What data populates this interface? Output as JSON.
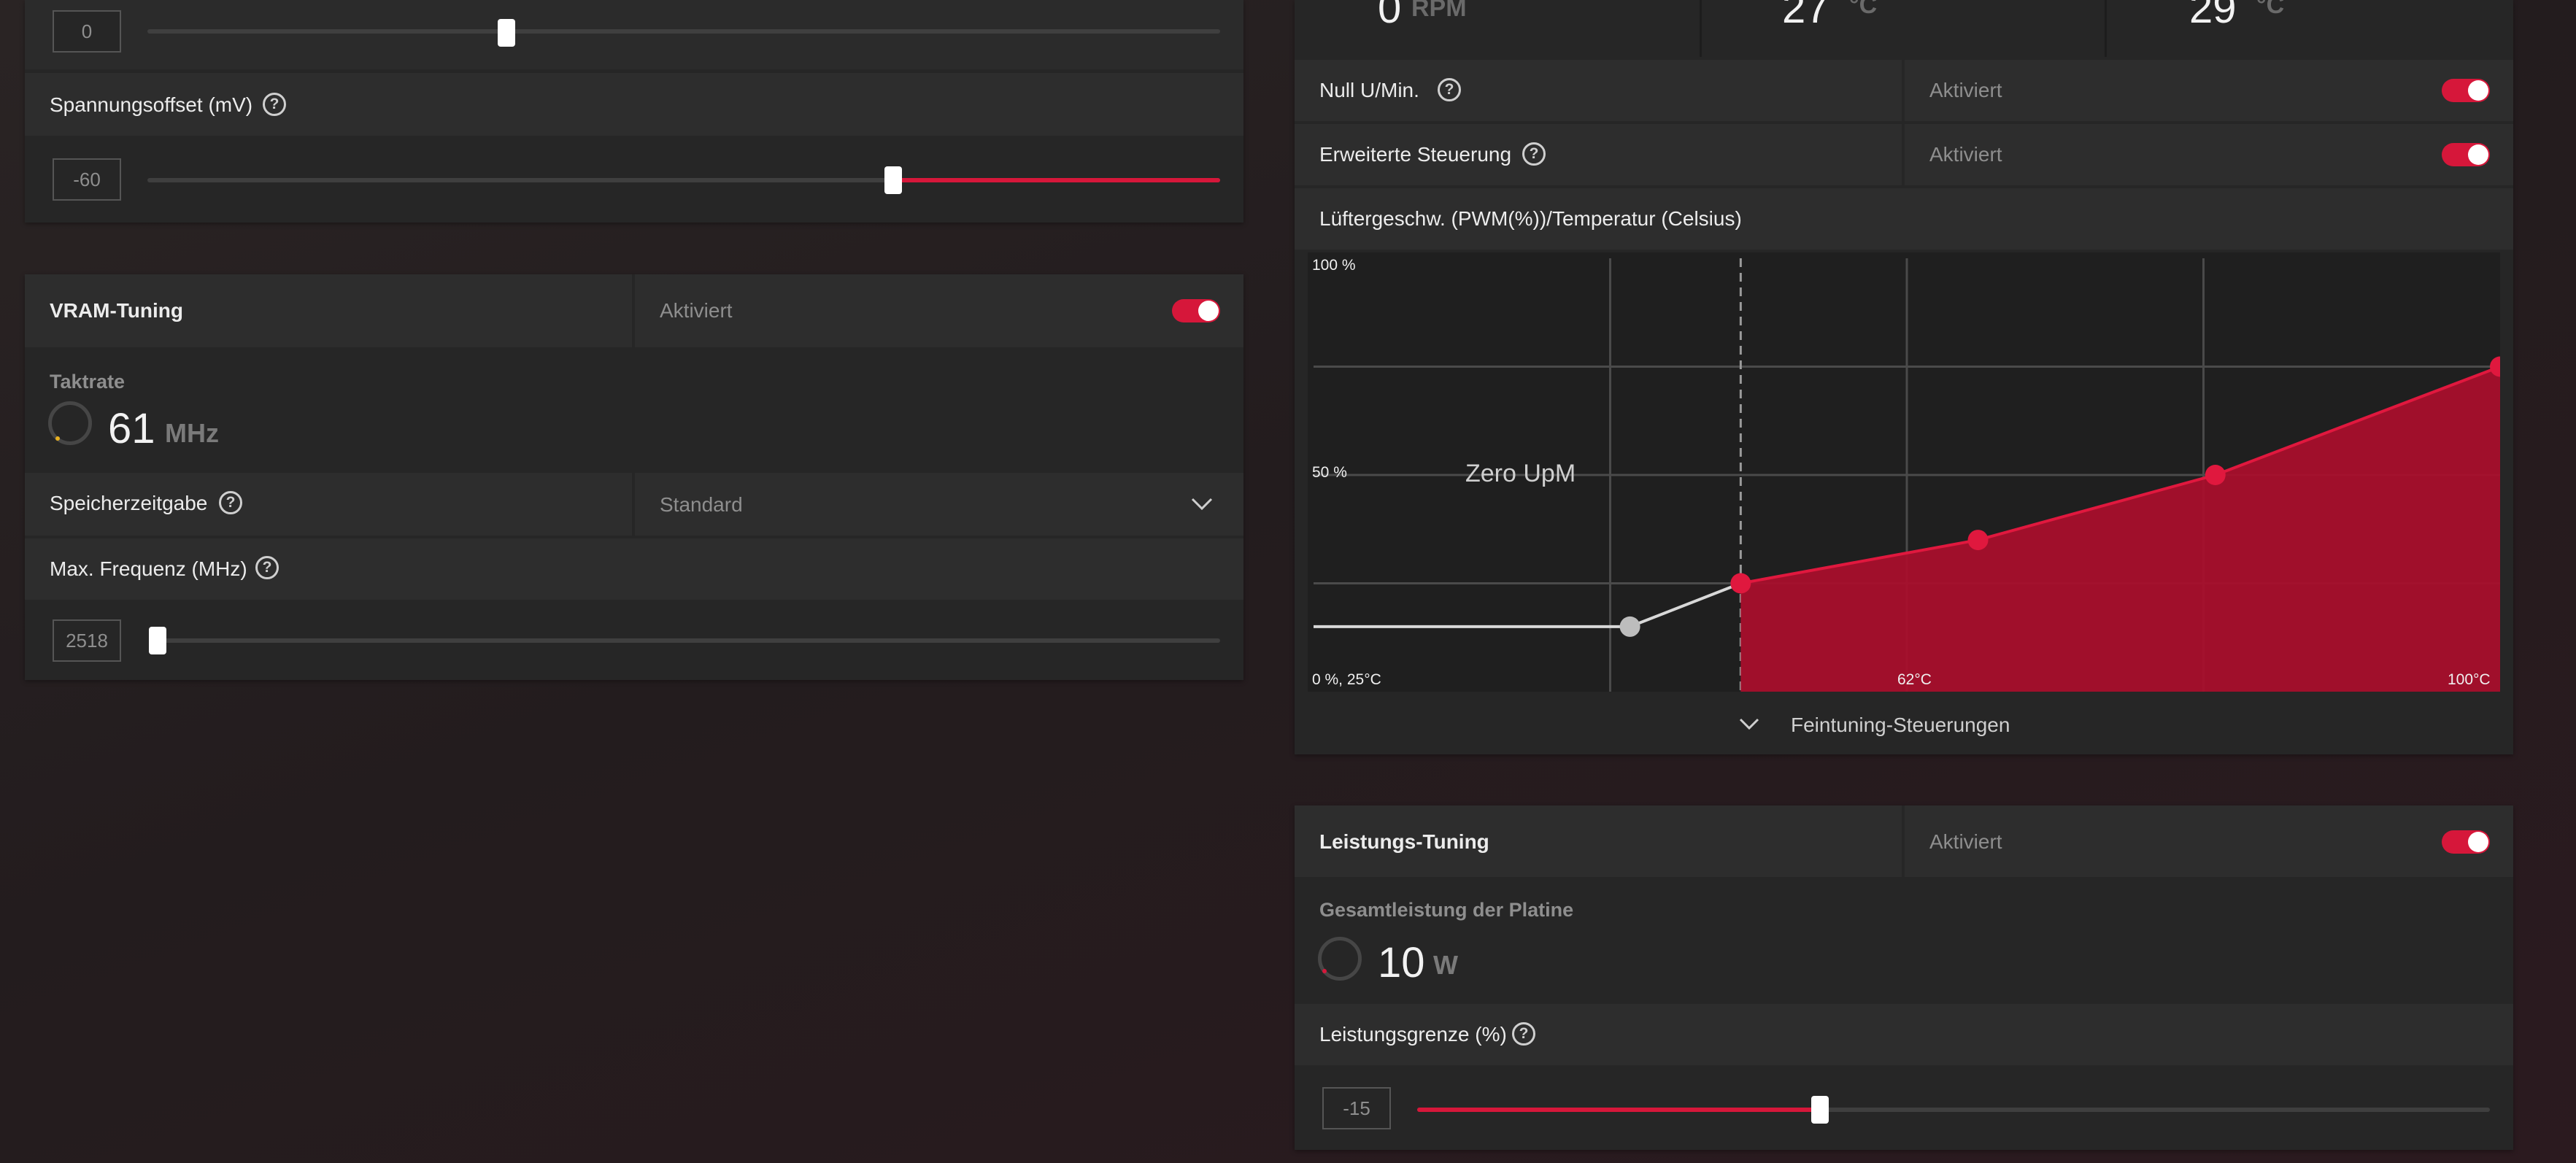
{
  "left": {
    "top_slider": {
      "value": "0",
      "fraction": 0.34
    },
    "voltage_offset": {
      "label": "Spannungsoffset (mV)",
      "value": "-60",
      "fraction": 0.7
    },
    "vram": {
      "title": "VRAM-Tuning",
      "status": "Aktiviert",
      "clock_label": "Taktrate",
      "clock_value": "61",
      "clock_unit": "MHz",
      "memory_timing_label": "Speicherzeitgabe",
      "memory_timing_value": "Standard",
      "max_freq_label": "Max. Frequenz (MHz)",
      "max_freq_value": "2518",
      "max_freq_fraction": 0.0
    }
  },
  "right": {
    "top_cut_values": {
      "rpm": "0",
      "rpm_unit": "RPM",
      "temp1": "27",
      "temp2": "29",
      "temp_unit": "°C"
    },
    "zero_rpm": {
      "label": "Null U/Min.",
      "status": "Aktiviert"
    },
    "advanced_control": {
      "label": "Erweiterte Steuerung",
      "status": "Aktiviert"
    },
    "fan_curve": {
      "title": "Lüftergeschw. (PWM(%))/Temperatur (Celsius)",
      "y_top": "100 %",
      "y_mid": "50 %",
      "origin": "0 %, 25°C",
      "x_mid": "62°C",
      "x_max": "100°C",
      "zero_label": "Zero UpM",
      "fine_tuning": "Feintuning-Steuerungen"
    },
    "power": {
      "title": "Leistungs-Tuning",
      "status": "Aktiviert",
      "board_power_label": "Gesamtleistung der Platine",
      "board_power_value": "10",
      "board_power_unit": "W",
      "limit_label": "Leistungsgrenze (%)",
      "limit_value": "-15",
      "limit_fraction": 0.375
    }
  },
  "colors": {
    "accent": "#d6173a",
    "panel": "#262626",
    "row": "#2b2b2b"
  },
  "chart_data": {
    "type": "area",
    "x": [
      25,
      45,
      52,
      67,
      82,
      100
    ],
    "y": [
      15,
      15,
      25,
      35,
      50,
      75
    ],
    "xlabel": "",
    "ylabel": "",
    "xlim": [
      25,
      100
    ],
    "ylim": [
      0,
      100
    ],
    "tick_labels_x": [
      "0 %, 25°C",
      "62°C",
      "100°C"
    ],
    "tick_labels_y": [
      "100 %",
      "50 %"
    ],
    "grid": true,
    "annotations": [
      "Zero UpM"
    ]
  }
}
